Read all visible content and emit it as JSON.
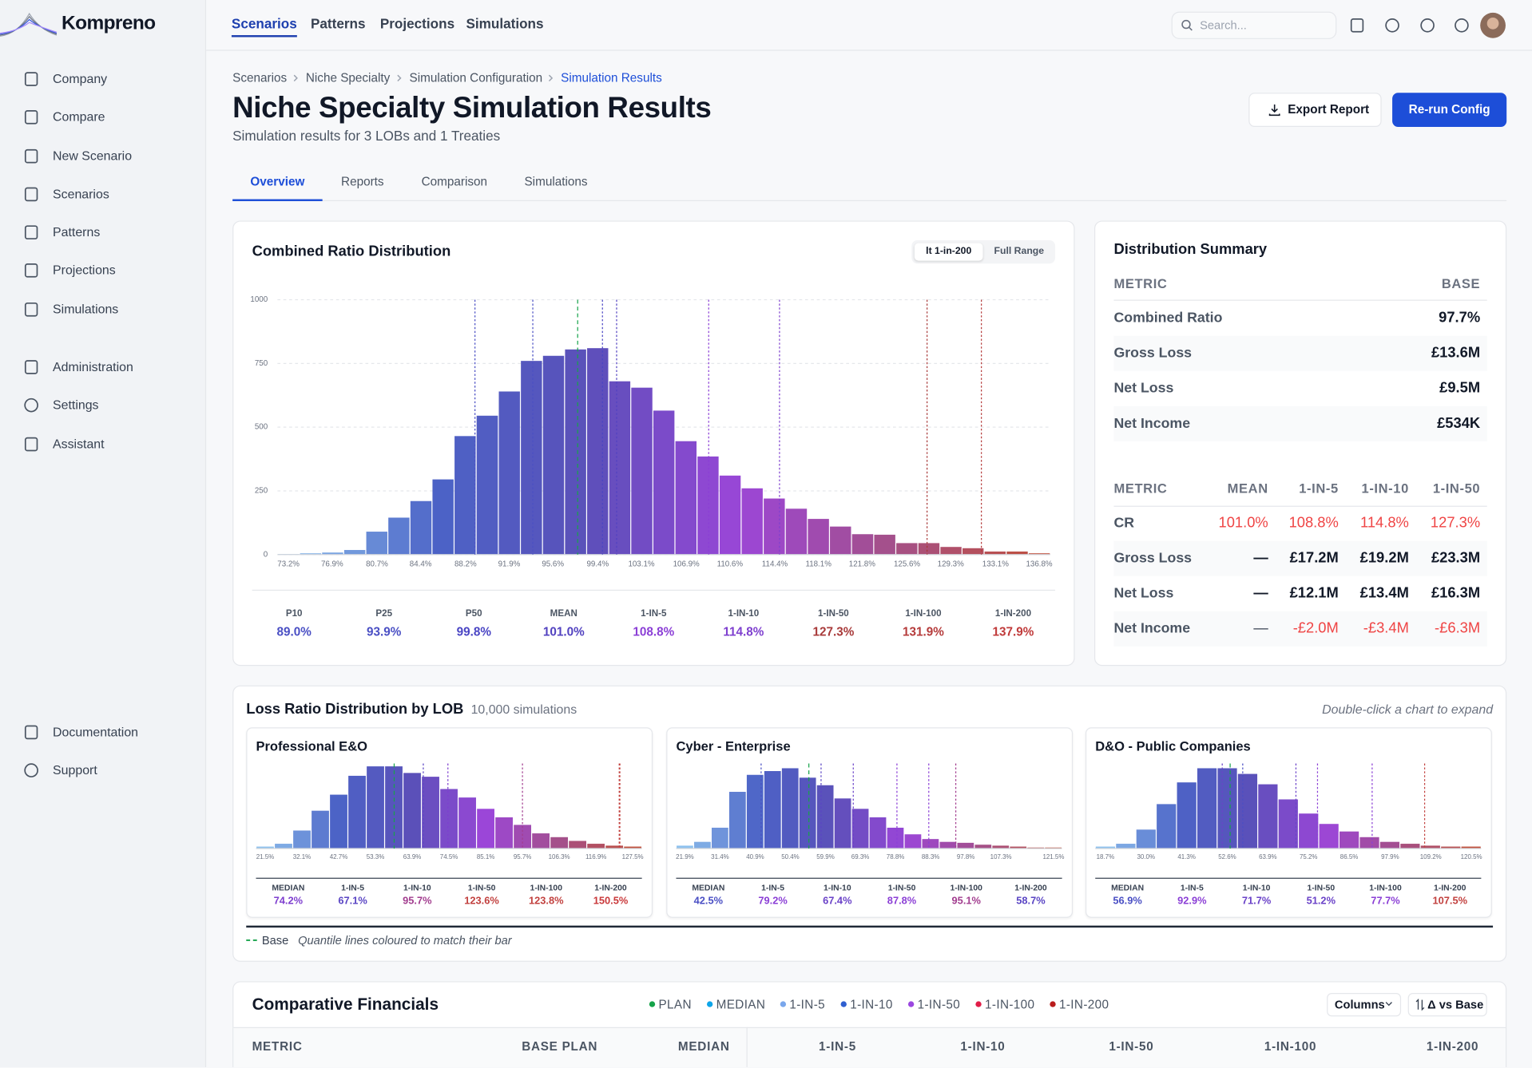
{
  "sidebar": {
    "brand": "Kompreno",
    "nav": [
      "Company",
      "Compare",
      "New Scenario",
      "Scenarios",
      "Patterns",
      "Projections",
      "Simulations"
    ],
    "admin": [
      "Administration",
      "Settings",
      "Assistant"
    ],
    "footer": [
      "Documentation",
      "Support"
    ]
  },
  "topnav": {
    "tabs": [
      "Scenarios",
      "Patterns",
      "Projections",
      "Simulations"
    ],
    "active": 0,
    "search_placeholder": "Search..."
  },
  "header": {
    "breadcrumbs": [
      "Scenarios",
      "Niche Specialty",
      "Simulation Configuration",
      "Simulation Results"
    ],
    "title": "Niche Specialty Simulation Results",
    "subtitle": "Simulation results for 3 LOBs and 1 Treaties",
    "buttons": [
      "Export Report",
      "Re-run Config"
    ]
  },
  "tabs": {
    "items": [
      "Overview",
      "Reports",
      "Comparison",
      "Simulations"
    ],
    "active": 0
  },
  "chart_data": [
    {
      "type": "histogram",
      "title": "Combined Ratio Distribution",
      "toggle": [
        "lt 1-in-200",
        "Full Range"
      ],
      "toggle_active": 0,
      "bins": [
        72.27,
        74.14,
        76.01,
        77.88,
        79.75,
        81.62,
        83.49,
        85.36,
        87.23,
        89.1,
        90.98,
        92.85,
        94.72,
        96.59,
        98.46,
        100.33,
        102.2,
        104.07,
        105.94,
        107.81,
        109.68,
        111.55,
        113.42,
        115.29,
        117.16,
        119.03,
        120.9,
        122.78,
        124.65,
        126.52,
        128.39,
        130.26,
        132.13,
        134.0,
        135.87,
        137.74
      ],
      "counts": [
        2,
        5,
        8,
        18,
        90,
        145,
        210,
        295,
        465,
        545,
        640,
        760,
        780,
        805,
        810,
        680,
        655,
        565,
        445,
        385,
        310,
        260,
        220,
        180,
        140,
        110,
        80,
        78,
        45,
        45,
        30,
        25,
        12,
        12,
        5
      ],
      "xlim": [
        72.27,
        137.74
      ],
      "xticks": [
        {
          "value": 73.2,
          "label": "73.2%"
        },
        {
          "value": 76.9,
          "label": "76.9%"
        },
        {
          "value": 80.7,
          "label": "80.7%"
        },
        {
          "value": 84.4,
          "label": "84.4%"
        },
        {
          "value": 88.2,
          "label": "88.2%"
        },
        {
          "value": 91.9,
          "label": "91.9%"
        },
        {
          "value": 95.6,
          "label": "95.6%"
        },
        {
          "value": 99.4,
          "label": "99.4%"
        },
        {
          "value": 103.1,
          "label": "103.1%"
        },
        {
          "value": 106.9,
          "label": "106.9%"
        },
        {
          "value": 110.6,
          "label": "110.6%"
        },
        {
          "value": 114.4,
          "label": "114.4%"
        },
        {
          "value": 118.1,
          "label": "118.1%"
        },
        {
          "value": 121.8,
          "label": "121.8%"
        },
        {
          "value": 125.6,
          "label": "125.6%"
        },
        {
          "value": 129.3,
          "label": "129.3%"
        },
        {
          "value": 133.1,
          "label": "133.1%"
        },
        {
          "value": 136.8,
          "label": "136.8%"
        }
      ],
      "ylim": [
        0,
        1000
      ],
      "yticks": [
        0,
        250,
        500,
        750,
        1000
      ],
      "grid": true,
      "color_scale": [
        "#8ec1ee",
        "#4c63c6",
        "#5b50b9",
        "#9b46d8",
        "#a4508a",
        "#c0503c"
      ],
      "base": 97.7,
      "base_color": "#16a34a",
      "stats": [
        {
          "name": "P10",
          "value": 89.0,
          "label": "89.0%",
          "color": "#4a4fc4"
        },
        {
          "name": "P25",
          "value": 93.9,
          "label": "93.9%",
          "color": "#4a4fc4"
        },
        {
          "name": "P50",
          "value": 99.8,
          "label": "99.8%",
          "color": "#4a45c4"
        },
        {
          "name": "MEAN",
          "value": 101.0,
          "label": "101.0%",
          "color": "#5242c0"
        },
        {
          "name": "1-IN-5",
          "value": 108.8,
          "label": "108.8%",
          "color": "#8b3fd6"
        },
        {
          "name": "1-IN-10",
          "value": 114.8,
          "label": "114.8%",
          "color": "#7e3fcf"
        },
        {
          "name": "1-IN-50",
          "value": 127.3,
          "label": "127.3%",
          "color": "#a83a3a"
        },
        {
          "name": "1-IN-100",
          "value": 131.9,
          "label": "131.9%",
          "color": "#b53b3b"
        },
        {
          "name": "1-IN-200",
          "value": 137.9,
          "label": "137.9%",
          "color": "#c03a3a"
        }
      ]
    },
    {
      "type": "histogram",
      "title": "Professional E&O",
      "bins": [
        18.85,
        24.15,
        29.45,
        34.75,
        40.05,
        45.35,
        50.65,
        55.95,
        61.25,
        66.55,
        71.85,
        77.15,
        82.45,
        87.75,
        93.05,
        98.35,
        103.65,
        108.95,
        114.25,
        119.55,
        124.85,
        130.15
      ],
      "counts": [
        20,
        50,
        190,
        400,
        570,
        770,
        870,
        870,
        800,
        760,
        630,
        540,
        420,
        330,
        250,
        160,
        120,
        80,
        50,
        30,
        20
      ],
      "xlim": [
        18.85,
        130.15
      ],
      "xticks": [
        {
          "value": 21.5,
          "label": "21.5%"
        },
        {
          "value": 32.1,
          "label": "32.1%"
        },
        {
          "value": 42.7,
          "label": "42.7%"
        },
        {
          "value": 53.3,
          "label": "53.3%"
        },
        {
          "value": 63.9,
          "label": "63.9%"
        },
        {
          "value": 74.5,
          "label": "74.5%"
        },
        {
          "value": 85.1,
          "label": "85.1%"
        },
        {
          "value": 95.7,
          "label": "95.7%"
        },
        {
          "value": 106.3,
          "label": "106.3%"
        },
        {
          "value": 116.9,
          "label": "116.9%"
        },
        {
          "value": 127.5,
          "label": "127.5%"
        }
      ],
      "ylim": [
        0,
        900
      ],
      "color_scale": [
        "#8ec1ee",
        "#4c63c6",
        "#5b50b9",
        "#9b46d8",
        "#a4508a",
        "#c0503c"
      ],
      "base": 58.7,
      "base_color": "#16a34a",
      "stats": [
        {
          "name": "MEDIAN",
          "value": 74.2,
          "label": "74.2%",
          "color": "#7e3fcf"
        },
        {
          "name": "1-IN-5",
          "value": 67.1,
          "label": "67.1%",
          "color": "#5a45c4"
        },
        {
          "name": "1-IN-10",
          "value": 95.7,
          "label": "95.7%",
          "color": "#a23d8f"
        },
        {
          "name": "1-IN-50",
          "value": 123.6,
          "label": "123.6%",
          "color": "#c2413f"
        },
        {
          "name": "1-IN-100",
          "value": 123.8,
          "label": "123.8%",
          "color": "#c2413f"
        },
        {
          "name": "1-IN-200",
          "value": 150.5,
          "label": "150.5%",
          "color": "#c9383a"
        }
      ]
    },
    {
      "type": "histogram",
      "title": "Cyber - Enterprise",
      "bins": [
        19.53,
        24.27,
        29.01,
        33.75,
        38.49,
        43.23,
        47.97,
        52.71,
        57.45,
        62.19,
        66.93,
        71.67,
        76.41,
        81.15,
        85.89,
        90.63,
        95.37,
        100.11,
        104.85,
        109.59,
        114.33,
        119.07,
        123.81
      ],
      "counts": [
        30,
        70,
        220,
        600,
        780,
        820,
        850,
        750,
        670,
        530,
        420,
        330,
        220,
        150,
        100,
        70,
        60,
        40,
        30,
        20,
        10,
        10
      ],
      "xlim": [
        19.53,
        123.81
      ],
      "xticks": [
        {
          "value": 21.9,
          "label": "21.9%"
        },
        {
          "value": 31.4,
          "label": "31.4%"
        },
        {
          "value": 40.9,
          "label": "40.9%"
        },
        {
          "value": 50.4,
          "label": "50.4%"
        },
        {
          "value": 59.9,
          "label": "59.9%"
        },
        {
          "value": 69.3,
          "label": "69.3%"
        },
        {
          "value": 78.8,
          "label": "78.8%"
        },
        {
          "value": 88.3,
          "label": "88.3%"
        },
        {
          "value": 97.8,
          "label": "97.8%"
        },
        {
          "value": 107.3,
          "label": "107.3%"
        },
        {
          "value": 121.5,
          "label": "121.5%"
        }
      ],
      "ylim": [
        0,
        900
      ],
      "color_scale": [
        "#8ec1ee",
        "#4c63c6",
        "#5b50b9",
        "#9b46d8",
        "#a4508a",
        "#c0503c"
      ],
      "base": 55.4,
      "base_color": "#16a34a",
      "stats": [
        {
          "name": "MEDIAN",
          "value": 42.5,
          "label": "42.5%",
          "color": "#4a4fc4"
        },
        {
          "name": "1-IN-5",
          "value": 79.2,
          "label": "79.2%",
          "color": "#8b3fd6"
        },
        {
          "name": "1-IN-10",
          "value": 67.4,
          "label": "67.4%",
          "color": "#6a42c8"
        },
        {
          "name": "1-IN-50",
          "value": 87.8,
          "label": "87.8%",
          "color": "#8b3fd6"
        },
        {
          "name": "1-IN-100",
          "value": 95.1,
          "label": "95.1%",
          "color": "#a23d8f"
        },
        {
          "name": "1-IN-200",
          "value": 58.7,
          "label": "58.7%",
          "color": "#5a45c4"
        }
      ]
    },
    {
      "type": "histogram",
      "title": "D&O - Public Companies",
      "bins": [
        15.88,
        21.53,
        27.18,
        32.83,
        38.48,
        44.13,
        49.78,
        55.43,
        61.08,
        66.73,
        72.38,
        78.03,
        83.68,
        89.33,
        94.98,
        100.63,
        106.28,
        111.93,
        117.58,
        123.23
      ],
      "counts": [
        20,
        50,
        200,
        470,
        700,
        850,
        850,
        790,
        680,
        520,
        370,
        260,
        180,
        120,
        70,
        50,
        30,
        20,
        20
      ],
      "xlim": [
        15.88,
        123.23
      ],
      "xticks": [
        {
          "value": 18.7,
          "label": "18.7%"
        },
        {
          "value": 30,
          "label": "30.0%"
        },
        {
          "value": 41.3,
          "label": "41.3%"
        },
        {
          "value": 52.6,
          "label": "52.6%"
        },
        {
          "value": 63.9,
          "label": "63.9%"
        },
        {
          "value": 75.2,
          "label": "75.2%"
        },
        {
          "value": 86.5,
          "label": "86.5%"
        },
        {
          "value": 97.9,
          "label": "97.9%"
        },
        {
          "value": 109.2,
          "label": "109.2%"
        },
        {
          "value": 120.5,
          "label": "120.5%"
        }
      ],
      "ylim": [
        0,
        900
      ],
      "color_scale": [
        "#8ec1ee",
        "#4c63c6",
        "#5b50b9",
        "#9b46d8",
        "#a4508a",
        "#c0503c"
      ],
      "base": 53.4,
      "base_color": "#16a34a",
      "stats": [
        {
          "name": "MEDIAN",
          "value": 56.9,
          "label": "56.9%",
          "color": "#4a4fc4"
        },
        {
          "name": "1-IN-5",
          "value": 92.9,
          "label": "92.9%",
          "color": "#8b3fd6"
        },
        {
          "name": "1-IN-10",
          "value": 71.7,
          "label": "71.7%",
          "color": "#6a42c8"
        },
        {
          "name": "1-IN-50",
          "value": 51.2,
          "label": "51.2%",
          "color": "#6a42c8"
        },
        {
          "name": "1-IN-100",
          "value": 77.7,
          "label": "77.7%",
          "color": "#8b3fd6"
        },
        {
          "name": "1-IN-200",
          "value": 107.5,
          "label": "107.5%",
          "color": "#c2413f"
        }
      ]
    }
  ],
  "summary": {
    "title": "Distribution Summary",
    "base_table": {
      "headers": [
        "METRIC",
        "BASE"
      ],
      "rows": [
        [
          "Combined Ratio",
          "97.7%"
        ],
        [
          "Gross Loss",
          "£13.6M"
        ],
        [
          "Net Loss",
          "£9.5M"
        ],
        [
          "Net Income",
          "£534K"
        ]
      ]
    },
    "tail_table": {
      "headers": [
        "METRIC",
        "MEAN",
        "1-IN-5",
        "1-IN-10",
        "1-IN-50"
      ],
      "rows": [
        {
          "cells": [
            "CR",
            "101.0%",
            "108.8%",
            "114.8%",
            "127.3%"
          ],
          "colors": [
            "#4b5563",
            "#ef4444",
            "#ef4444",
            "#ef4444",
            "#ef4444"
          ]
        },
        {
          "cells": [
            "Gross Loss",
            "—",
            "£17.2M",
            "£19.2M",
            "£23.3M"
          ]
        },
        {
          "cells": [
            "Net Loss",
            "—",
            "£12.1M",
            "£13.4M",
            "£16.3M"
          ]
        },
        {
          "cells": [
            "Net Income",
            "—",
            "-£2.0M",
            "-£3.4M",
            "-£6.3M"
          ],
          "colors": [
            "#4b5563",
            "#374151",
            "#ef4444",
            "#ef4444",
            "#ef4444"
          ]
        }
      ]
    }
  },
  "lob_section": {
    "title": "Loss Ratio Distribution by LOB",
    "count": "10,000 simulations",
    "hint": "Double-click a chart to expand",
    "legend_base": "Base",
    "legend_note": "Quantile lines coloured to match their bar"
  },
  "financials": {
    "title": "Comparative Financials",
    "legend": [
      {
        "name": "PLAN",
        "color": "#16a34a"
      },
      {
        "name": "MEDIAN",
        "color": "#0ea5e9"
      },
      {
        "name": "1-IN-5",
        "color": "#7aa7ec"
      },
      {
        "name": "1-IN-10",
        "color": "#2f5fd0"
      },
      {
        "name": "1-IN-50",
        "color": "#9b47e0"
      },
      {
        "name": "1-IN-100",
        "color": "#e11d48"
      },
      {
        "name": "1-IN-200",
        "color": "#b91c1c"
      }
    ],
    "buttons": [
      "Columns",
      "Δ vs Base"
    ],
    "headers": [
      "METRIC",
      "BASE PLAN",
      "MEDIAN",
      "1-IN-5",
      "1-IN-10",
      "1-IN-50",
      "1-IN-100",
      "1-IN-200"
    ]
  }
}
